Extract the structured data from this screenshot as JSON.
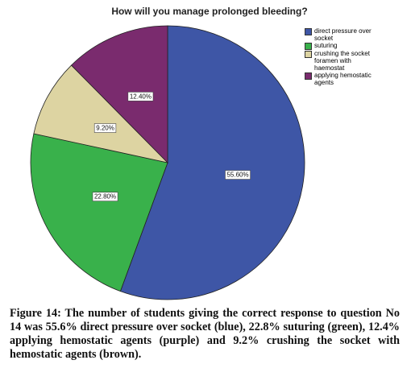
{
  "chart_data": {
    "type": "pie",
    "title": "How will you manage prolonged bleeding?",
    "categories": [
      "direct pressure over socket",
      "suturing",
      "crushing the socket foramen with haemostat",
      "applying hemostatic agents"
    ],
    "values": [
      55.6,
      22.8,
      9.2,
      12.4
    ],
    "value_labels": [
      "55.60%",
      "22.80%",
      "9.20%",
      "12.40%"
    ],
    "colors": [
      "#3e56a6",
      "#39b14b",
      "#ddd4a2",
      "#7a2b6e"
    ]
  },
  "caption": "Figure 14: The number of students giving the correct response to question No 14 was 55.6% direct pressure over socket (blue), 22.8% suturing (green), 12.4% applying hemostatic agents (purple) and 9.2% crushing the socket with hemostatic agents (brown)."
}
